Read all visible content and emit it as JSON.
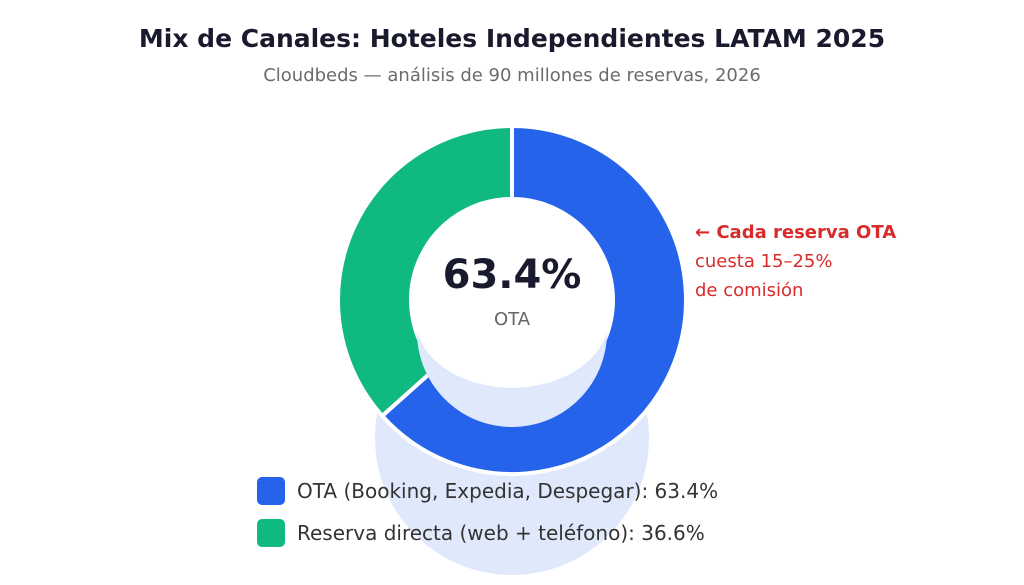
{
  "chart_data": {
    "type": "pie",
    "title": "Mix de Canales: Hoteles Independientes LATAM 2025",
    "subtitle": "Cloudbeds — análisis de 90 millones de reservas, 2026",
    "series": [
      {
        "name": "OTA",
        "label": "OTA (Booking, Expedia, Despegar): 63.4%",
        "value": 63.4,
        "color": "#2563eb"
      },
      {
        "name": "Reserva directa",
        "label": "Reserva directa (web + teléfono): 36.6%",
        "value": 36.6,
        "color": "#10b981"
      }
    ],
    "center": {
      "value": "63.4%",
      "label": "OTA"
    },
    "annotation": {
      "line1": "← Cada reserva OTA",
      "line2": "cuesta 15–25%",
      "line3": "de comisión",
      "color": "#d92b2b"
    },
    "legend_position": "bottom",
    "style": "donut"
  }
}
